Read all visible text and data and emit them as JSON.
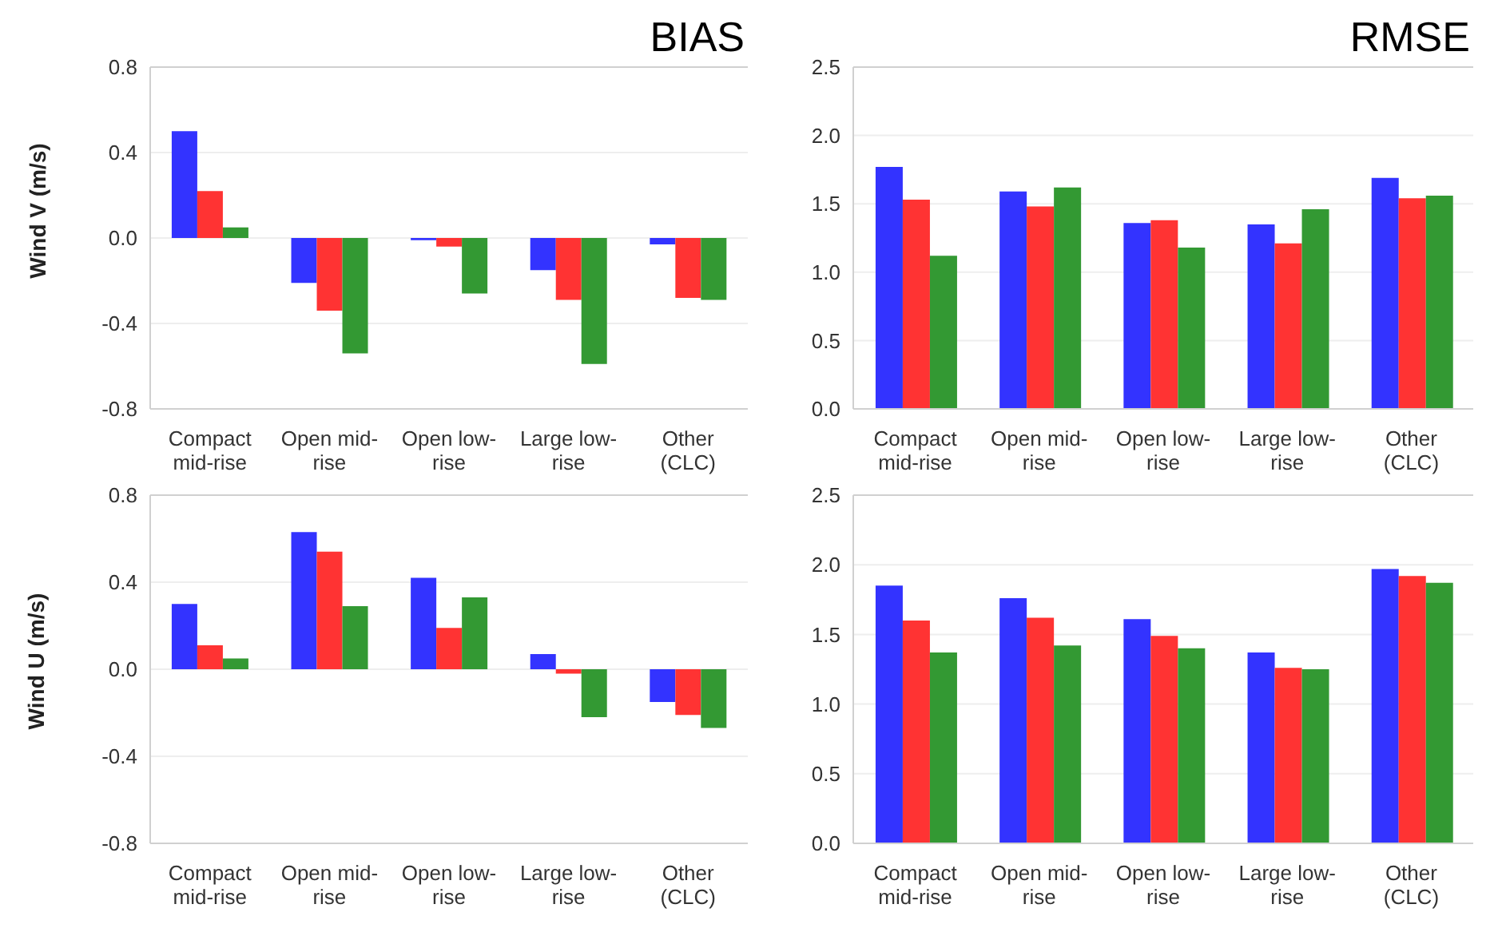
{
  "chart_data": [
    {
      "type": "bar",
      "title": "BIAS",
      "ylabel": "Wind V (m/s)",
      "categories": [
        "Compact mid-rise",
        "Open mid-rise",
        "Open low-rise",
        "Large low-rise",
        "Other (CLC)"
      ],
      "ylim": [
        -0.8,
        0.8
      ],
      "yticks": [
        {
          "value": -0.8,
          "label": "-0.8"
        },
        {
          "value": -0.4,
          "label": "-0.4"
        },
        {
          "value": 0,
          "label": "0.0"
        },
        {
          "value": 0.4,
          "label": "0.4"
        },
        {
          "value": 0.8,
          "label": "0.8"
        }
      ],
      "grid": "y",
      "legend": false,
      "series": [
        {
          "color": "#3333ff",
          "values": [
            0.5,
            -0.21,
            -0.01,
            -0.15,
            -0.03
          ]
        },
        {
          "color": "#ff3333",
          "values": [
            0.22,
            -0.34,
            -0.04,
            -0.29,
            -0.28
          ]
        },
        {
          "color": "#339933",
          "values": [
            0.05,
            -0.54,
            -0.26,
            -0.59,
            -0.29
          ]
        }
      ]
    },
    {
      "type": "bar",
      "title": "RMSE",
      "categories": [
        "Compact mid-rise",
        "Open mid-rise",
        "Open low-rise",
        "Large low-rise",
        "Other (CLC)"
      ],
      "ylim": [
        0,
        2.5
      ],
      "yticks": [
        {
          "value": 0,
          "label": "0.0"
        },
        {
          "value": 0.5,
          "label": "0.5"
        },
        {
          "value": 1,
          "label": "1.0"
        },
        {
          "value": 1.5,
          "label": "1.5"
        },
        {
          "value": 2,
          "label": "2.0"
        },
        {
          "value": 2.5,
          "label": "2.5"
        }
      ],
      "grid": "y",
      "legend": false,
      "series": [
        {
          "color": "#3333ff",
          "values": [
            1.77,
            1.59,
            1.36,
            1.35,
            1.69
          ]
        },
        {
          "color": "#ff3333",
          "values": [
            1.53,
            1.48,
            1.38,
            1.21,
            1.54
          ]
        },
        {
          "color": "#339933",
          "values": [
            1.12,
            1.62,
            1.18,
            1.46,
            1.56
          ]
        }
      ]
    },
    {
      "type": "bar",
      "ylabel": "Wind U (m/s)",
      "categories": [
        "Compact mid-rise",
        "Open mid-rise",
        "Open low-rise",
        "Large low-rise",
        "Other (CLC)"
      ],
      "ylim": [
        -0.8,
        0.8
      ],
      "yticks": [
        {
          "value": -0.8,
          "label": "-0.8"
        },
        {
          "value": -0.4,
          "label": "-0.4"
        },
        {
          "value": 0,
          "label": "0.0"
        },
        {
          "value": 0.4,
          "label": "0.4"
        },
        {
          "value": 0.8,
          "label": "0.8"
        }
      ],
      "grid": "y",
      "legend": false,
      "series": [
        {
          "color": "#3333ff",
          "values": [
            0.3,
            0.63,
            0.42,
            0.07,
            -0.15
          ]
        },
        {
          "color": "#ff3333",
          "values": [
            0.11,
            0.54,
            0.19,
            -0.02,
            -0.21
          ]
        },
        {
          "color": "#339933",
          "values": [
            0.05,
            0.29,
            0.33,
            -0.22,
            -0.27
          ]
        }
      ]
    },
    {
      "type": "bar",
      "categories": [
        "Compact mid-rise",
        "Open mid-rise",
        "Open low-rise",
        "Large low-rise",
        "Other (CLC)"
      ],
      "ylim": [
        0,
        2.5
      ],
      "yticks": [
        {
          "value": 0,
          "label": "0.0"
        },
        {
          "value": 0.5,
          "label": "0.5"
        },
        {
          "value": 1,
          "label": "1.0"
        },
        {
          "value": 1.5,
          "label": "1.5"
        },
        {
          "value": 2,
          "label": "2.0"
        },
        {
          "value": 2.5,
          "label": "2.5"
        }
      ],
      "grid": "y",
      "legend": false,
      "series": [
        {
          "color": "#3333ff",
          "values": [
            1.85,
            1.76,
            1.61,
            1.37,
            1.97
          ]
        },
        {
          "color": "#ff3333",
          "values": [
            1.6,
            1.62,
            1.49,
            1.26,
            1.92
          ]
        },
        {
          "color": "#339933",
          "values": [
            1.37,
            1.42,
            1.4,
            1.25,
            1.87
          ]
        }
      ]
    }
  ]
}
